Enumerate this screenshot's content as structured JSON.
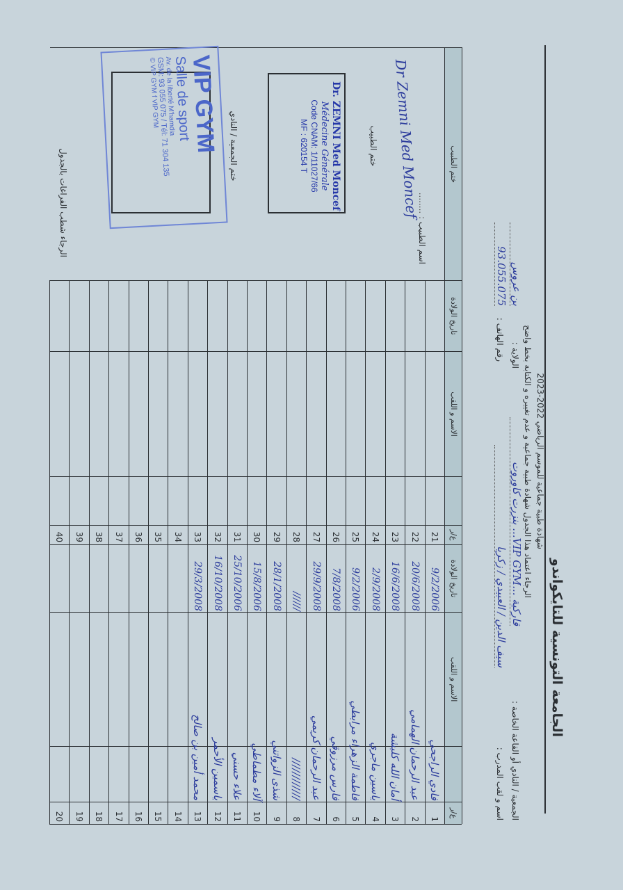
{
  "header": {
    "federation_title": "الجامعة التونسية للتايكواندو",
    "form_title": "شهادة طبية جماعية للموسم الرياضي 2022-2023",
    "instruction": "الرجاء اعتماد هذا الجدول شهادة طبية جماعية و عدم تغييره و الكتابة بخط واضح",
    "club_label": "الجمعية / النادي أو القاعة الخاصة :",
    "club_value": "قاركية ...VIP GYM... بنزرت كاوروت",
    "governorate_label": "الولاية :",
    "governorate_value": "بن عروس",
    "coach_label": "اسم و لقب المدرب :",
    "coach_value": "سيف الدين / العبيدي / زكريا",
    "phone_label": "رقم الهاتف :",
    "phone_value": "93.055.075"
  },
  "table": {
    "headers": {
      "number": "ع/ر",
      "name": "الاسم و اللقب",
      "birth_date": "تاريخ الولادة",
      "doctor_stamp": "ختم الطبيب"
    },
    "row_numbers_right": [
      1,
      2,
      3,
      4,
      5,
      6,
      7,
      8,
      9,
      10,
      11,
      12,
      13,
      14,
      15,
      16,
      17,
      18,
      19,
      20
    ],
    "row_numbers_left": [
      21,
      22,
      23,
      24,
      25,
      26,
      27,
      28,
      29,
      30,
      31,
      32,
      33,
      34,
      35,
      36,
      37,
      38,
      39,
      40
    ],
    "entries": [
      {
        "name": "فادي الراجحي",
        "birth_date": "9/2/2006"
      },
      {
        "name": "عبد الرحمان الهمامي",
        "birth_date": "20/6/2008"
      },
      {
        "name": "أمان الله كلبشة",
        "birth_date": "16/6/2008"
      },
      {
        "name": "ياسين ماجري",
        "birth_date": "2/9/2008"
      },
      {
        "name": "فاطمة الزهراء مرابطي",
        "birth_date": "9/2/2006"
      },
      {
        "name": "فارس مرزوقي",
        "birth_date": "7/8/2008"
      },
      {
        "name": "عبد الرحمان كريمي",
        "birth_date": "29/9/2008"
      },
      {
        "name": "////////////",
        "birth_date": "//////"
      },
      {
        "name": "شذى الزواتني",
        "birth_date": "28/1/2008"
      },
      {
        "name": "آلاء مطماطي",
        "birth_date": "15/8/2006"
      },
      {
        "name": "علاء حسني",
        "birth_date": "25/10/2006"
      },
      {
        "name": "ياسمين الأحمر",
        "birth_date": "16/10/2008"
      },
      {
        "name": "محمد أمين بن صالح",
        "birth_date": "29/3/2008"
      }
    ]
  },
  "doctor": {
    "name_label": "اسم الطبيب",
    "signature": "Dr Zemni Med Moncef",
    "stamp_label": "ختم الطبيب",
    "stamp": {
      "line1": "Dr. ZEMNI Med Moncef",
      "line2": "Médecine Générale",
      "line3": "Code CNAM: 1/11027/66",
      "line4": "MF : 620154 T"
    }
  },
  "club": {
    "stamp_label": "ختم الجمعية / النادي",
    "stamp": {
      "name": "VIP GYM",
      "subtitle": "Salle de sport",
      "address": "Av. de la liberté M'hamdia",
      "phones": "GSM: 93 055 075 / Tél: 71 304 135",
      "social": "© VIP GYM  f VIP GYM"
    }
  },
  "footer": {
    "note": "الرجاء شطب الفراغات بالجدول"
  },
  "colors": {
    "paper": "#c8d4db",
    "header_shade": "#b3c7ce",
    "ink": "#2c3c9c",
    "stamp_blue": "#4b66c9"
  }
}
